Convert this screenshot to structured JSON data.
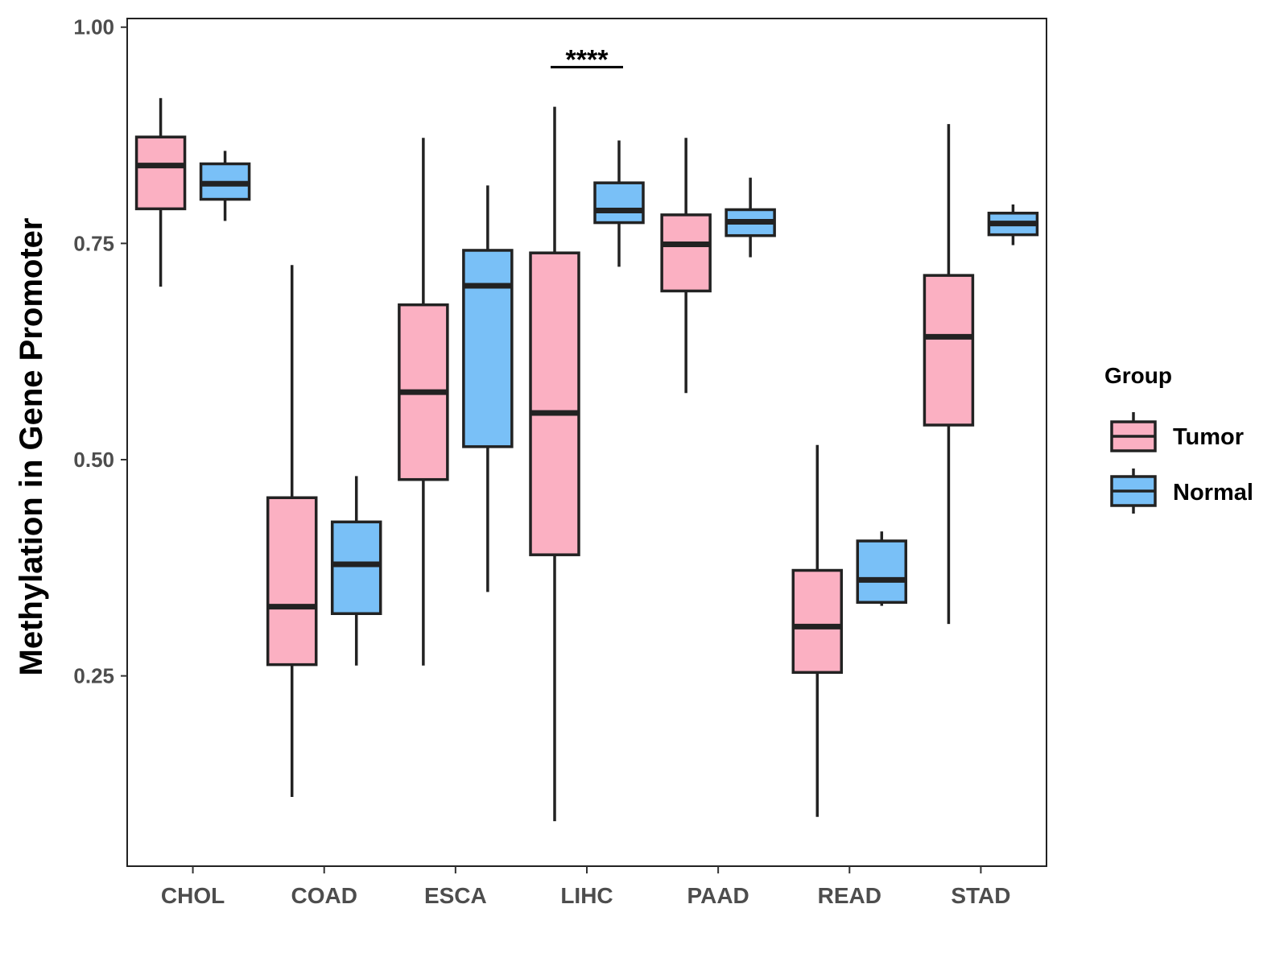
{
  "chart_data": {
    "type": "boxplot",
    "title": "",
    "xlabel": "",
    "ylabel": "Methylation in Gene Promoter",
    "ylim": [
      0.03,
      1.01
    ],
    "yticks": [
      0.25,
      0.5,
      0.75,
      1.0
    ],
    "ytick_labels": [
      "0.25",
      "0.50",
      "0.75",
      "1.00"
    ],
    "categories": [
      "CHOL",
      "COAD",
      "ESCA",
      "LIHC",
      "PAAD",
      "READ",
      "STAD"
    ],
    "series": [
      {
        "name": "Tumor",
        "color": "#FBB0C2",
        "boxes": [
          {
            "min": 0.7,
            "q1": 0.79,
            "median": 0.84,
            "q3": 0.873,
            "max": 0.918
          },
          {
            "min": 0.11,
            "q1": 0.263,
            "median": 0.33,
            "q3": 0.456,
            "max": 0.725
          },
          {
            "min": 0.262,
            "q1": 0.477,
            "median": 0.578,
            "q3": 0.679,
            "max": 0.872
          },
          {
            "min": 0.082,
            "q1": 0.39,
            "median": 0.554,
            "q3": 0.739,
            "max": 0.908
          },
          {
            "min": 0.577,
            "q1": 0.695,
            "median": 0.749,
            "q3": 0.783,
            "max": 0.872
          },
          {
            "min": 0.087,
            "q1": 0.254,
            "median": 0.307,
            "q3": 0.372,
            "max": 0.517
          },
          {
            "min": 0.31,
            "q1": 0.54,
            "median": 0.642,
            "q3": 0.713,
            "max": 0.888
          }
        ]
      },
      {
        "name": "Normal",
        "color": "#79C0F7",
        "boxes": [
          {
            "min": 0.776,
            "q1": 0.801,
            "median": 0.819,
            "q3": 0.842,
            "max": 0.857
          },
          {
            "min": 0.262,
            "q1": 0.322,
            "median": 0.379,
            "q3": 0.428,
            "max": 0.481
          },
          {
            "min": 0.347,
            "q1": 0.515,
            "median": 0.701,
            "q3": 0.742,
            "max": 0.817
          },
          {
            "min": 0.723,
            "q1": 0.774,
            "median": 0.788,
            "q3": 0.82,
            "max": 0.869
          },
          {
            "min": 0.734,
            "q1": 0.759,
            "median": 0.775,
            "q3": 0.789,
            "max": 0.826
          },
          {
            "min": 0.331,
            "q1": 0.335,
            "median": 0.361,
            "q3": 0.406,
            "max": 0.417
          },
          {
            "min": 0.748,
            "q1": 0.76,
            "median": 0.773,
            "q3": 0.785,
            "max": 0.795
          }
        ]
      }
    ],
    "annotations": [
      {
        "category": "LIHC",
        "text": "****",
        "y": 0.965
      }
    ],
    "legend": {
      "title": "Group",
      "position": "right",
      "entries": [
        "Tumor",
        "Normal"
      ]
    }
  }
}
